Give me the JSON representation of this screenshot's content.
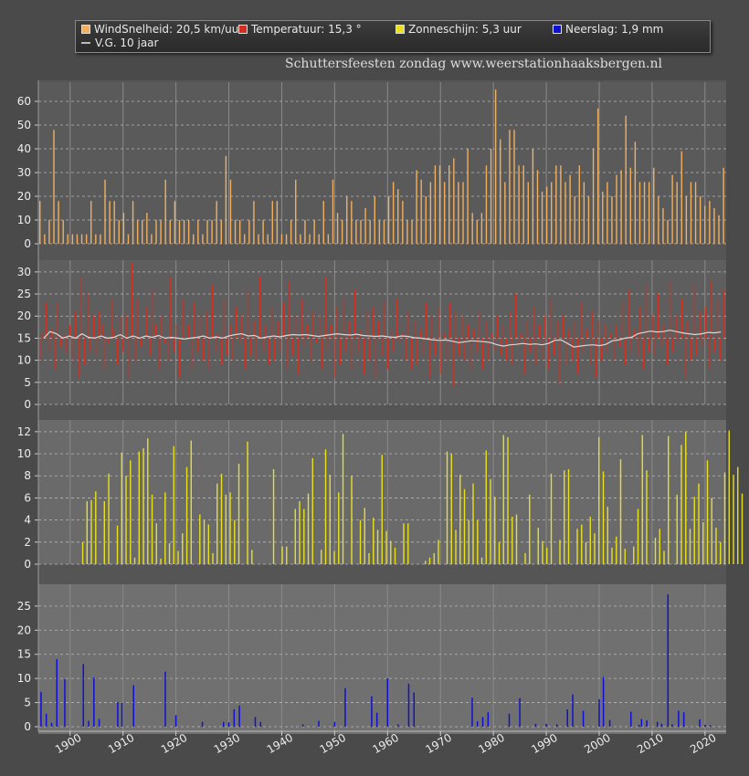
{
  "legend": {
    "items": [
      {
        "label": "WindSnelheid: 20,5 km/uur",
        "color": "#f0b060"
      },
      {
        "label": "Temperatuur: 15,3 °",
        "color": "#d03020"
      },
      {
        "label": "Zonneschijn: 5,3 uur",
        "color": "#e8e020"
      },
      {
        "label": "Neerslag: 1,9 mm",
        "color": "#1010d0"
      },
      {
        "label": "V.G. 10 jaar",
        "color": "#bbbbbb"
      }
    ]
  },
  "title": "Schuttersfeesten zondag  www.weerstationhaaksbergen.nl",
  "chart_data": {
    "type": "bar",
    "x_range": [
      1894,
      2024
    ],
    "x_ticks": [
      "1900",
      "1910",
      "1920",
      "1930",
      "1940",
      "1950",
      "1960",
      "1970",
      "1980",
      "1990",
      "2000",
      "2010",
      "2020"
    ],
    "panels": [
      {
        "name": "WindSnelheid",
        "color": "#f0b060",
        "ylim": [
          0,
          65
        ],
        "y_ticks": [
          "0",
          "10",
          "20",
          "30",
          "40",
          "50",
          "60"
        ],
        "values": [
          18,
          4,
          10,
          48,
          18,
          10,
          4,
          4,
          4,
          4,
          4,
          18,
          4,
          4,
          27,
          18,
          18,
          10,
          13,
          4,
          18,
          10,
          10,
          13,
          4,
          10,
          10,
          27,
          10,
          18,
          10,
          10,
          10,
          4,
          10,
          4,
          10,
          10,
          18,
          10,
          37,
          27,
          10,
          10,
          4,
          10,
          18,
          4,
          10,
          4,
          18,
          18,
          4,
          4,
          10,
          27,
          4,
          10,
          4,
          10,
          4,
          18,
          4,
          27,
          13,
          10,
          20,
          18,
          10,
          10,
          15,
          10,
          20,
          10,
          10,
          20,
          26,
          23,
          18,
          10,
          10,
          31,
          27,
          20,
          26,
          33,
          33,
          26,
          33,
          36,
          26,
          26,
          40,
          13,
          10,
          13,
          33,
          40,
          65,
          44,
          26,
          48,
          48,
          33,
          33,
          26,
          40,
          31,
          22,
          24,
          26,
          33,
          33,
          26,
          29,
          20,
          33,
          26,
          20,
          40,
          57,
          22,
          26,
          20,
          29,
          31,
          54,
          32,
          43,
          26,
          26,
          26,
          32,
          20,
          15,
          10,
          29,
          26,
          39,
          20,
          26,
          26,
          20,
          16,
          18,
          15,
          12,
          32
        ]
      },
      {
        "name": "Temperatuur",
        "color": "#d03020",
        "ylim": [
          0,
          31
        ],
        "y_ticks": [
          "0",
          "5",
          "10",
          "15",
          "20",
          "25",
          "30"
        ],
        "values": [
          10,
          16,
          23,
          12,
          17,
          8,
          23,
          13,
          16,
          12,
          18,
          10,
          21,
          6,
          29,
          9,
          25,
          12,
          20,
          11,
          21,
          18,
          8,
          14,
          24,
          17,
          9,
          20,
          12,
          20,
          6,
          32,
          10,
          24,
          13,
          15,
          22,
          11,
          26,
          18,
          8,
          20,
          14,
          10,
          29,
          12,
          18,
          6,
          24,
          15,
          18,
          8,
          23,
          12,
          20,
          10,
          21,
          8,
          27,
          12,
          16,
          9,
          24,
          11,
          18,
          10,
          22,
          14,
          20,
          8,
          26,
          11,
          19,
          10,
          29,
          12,
          18,
          9,
          22,
          10,
          19,
          12,
          23,
          8,
          28,
          11,
          20,
          7,
          24,
          13,
          18,
          10,
          21,
          14,
          20,
          8,
          29,
          12,
          18,
          6,
          22,
          9,
          24,
          12,
          19,
          8,
          26,
          12,
          17,
          7,
          21,
          10,
          22,
          6,
          19,
          11,
          23,
          8,
          17,
          12,
          24,
          14,
          16,
          10,
          21,
          8,
          19,
          9,
          17,
          11,
          23,
          6,
          20,
          11,
          22,
          7,
          16,
          10,
          23,
          4,
          21,
          11,
          20,
          10,
          18,
          8,
          17,
          12,
          21,
          8,
          19,
          10,
          16,
          12,
          20,
          11,
          18,
          10,
          21,
          9,
          25,
          13,
          16,
          7,
          19,
          12,
          22,
          9,
          18,
          10,
          20,
          8,
          24,
          11,
          19,
          5,
          20,
          9,
          17,
          10,
          19,
          7,
          23,
          12,
          17,
          9,
          21,
          6,
          19,
          10,
          18,
          12,
          16,
          10,
          18,
          13,
          23,
          9,
          26,
          12,
          17,
          11,
          22,
          8,
          27,
          12,
          20,
          11,
          25,
          13,
          18,
          9,
          28,
          12,
          20,
          14,
          24,
          6,
          19,
          10,
          27,
          11,
          21,
          13,
          22,
          8,
          28,
          12,
          24,
          10,
          26
        ],
        "trend": [
          15,
          16.5,
          16,
          15,
          15.5,
          15,
          16,
          15.2,
          15,
          15.5,
          15,
          15.2,
          15.8,
          15,
          15.5,
          15,
          15.5,
          15.2,
          15.6,
          15,
          15.2,
          15,
          14.8,
          15,
          15.2,
          15.5,
          15,
          15.3,
          15,
          15.5,
          15.8,
          16,
          15.5,
          15.6,
          15,
          15.3,
          15.5,
          15.3,
          15.6,
          15.8,
          15.7,
          15.8,
          15.6,
          15.4,
          15.6,
          15.8,
          16,
          15.8,
          15.7,
          15.9,
          15.6,
          15.5,
          15.4,
          15.5,
          15.3,
          15.2,
          15.5,
          15.4,
          15.1,
          15,
          14.8,
          14.6,
          14.5,
          14.6,
          14.3,
          14,
          14.2,
          14.4,
          14.3,
          14.2,
          14,
          13.5,
          13.2,
          13.5,
          13.6,
          13.8,
          13.6,
          13.7,
          13.5,
          13.8,
          14.5,
          14.6,
          13.8,
          13,
          13.2,
          13.4,
          13.5,
          13.3,
          13.6,
          14.4,
          14.6,
          15,
          15.2,
          16,
          16.3,
          16.6,
          16.4,
          16.5,
          16.8,
          16.5,
          16.2,
          16,
          15.8,
          16,
          16.3,
          16.2,
          16.4
        ]
      },
      {
        "name": "Zonneschijn",
        "color": "#e8e020",
        "ylim": [
          0,
          12.4
        ],
        "y_ticks": [
          "0",
          "2",
          "4",
          "6",
          "8",
          "10",
          "12"
        ],
        "values": [
          0,
          0,
          0,
          0,
          0,
          0,
          0,
          0,
          0,
          2,
          5.7,
          5.8,
          6.6,
          0,
          5.7,
          8.2,
          0,
          3.5,
          10.1,
          8,
          9.4,
          0.6,
          10.2,
          10.5,
          11.4,
          6.3,
          3.7,
          0.5,
          6.5,
          1.9,
          10.7,
          1.2,
          2.8,
          8.8,
          11.2,
          0,
          4.5,
          4,
          3.6,
          1,
          7.3,
          8.2,
          6.3,
          6.5,
          4,
          9.1,
          0,
          11.1,
          1.3,
          0,
          0,
          0,
          0,
          8.6,
          0,
          1.6,
          1.6,
          0,
          5,
          5.7,
          5,
          6.4,
          9.6,
          0,
          1.3,
          10.4,
          8.1,
          1.2,
          6.5,
          11.8,
          0,
          8,
          0,
          4,
          5.1,
          1,
          4.2,
          3.1,
          9.9,
          3,
          2.1,
          1.5,
          0,
          3.7,
          3.7,
          0,
          0,
          0,
          0.3,
          0.6,
          1,
          2.2,
          0,
          10.2,
          10,
          3.1,
          8.1,
          6.8,
          4,
          7.3,
          4,
          0.6,
          10.3,
          7.7,
          6.1,
          2,
          11.7,
          11.5,
          4.3,
          4.5,
          0,
          1,
          6.3,
          0,
          3.3,
          2.1,
          1.5,
          8.2,
          0,
          2.2,
          8.5,
          8.6,
          0,
          3.2,
          3.6,
          2,
          4.3,
          2.8,
          11.5,
          8.4,
          5.2,
          1.5,
          2.5,
          9.5,
          1.4,
          0,
          1.6,
          5,
          11.7,
          8.5,
          0,
          2.4,
          3.2,
          1.2,
          11.6,
          0,
          6.3,
          10.8,
          12,
          3.2,
          6.1,
          7.3,
          3.8,
          9.4,
          6,
          3.3,
          2,
          8.3,
          12.1,
          8.1,
          8.8,
          6.4
        ],
        "x_start": 1895.0,
        "x_step": 0.82
      },
      {
        "name": "Neerslag",
        "color": "#1010d0",
        "ylim": [
          0,
          28
        ],
        "y_ticks": [
          "0",
          "5",
          "10",
          "15",
          "20",
          "25"
        ],
        "points": [
          [
            1894.5,
            7.2
          ],
          [
            1895.5,
            2.7
          ],
          [
            1896.5,
            0.8
          ],
          [
            1897.5,
            14
          ],
          [
            1899,
            9.8
          ],
          [
            1902.5,
            13
          ],
          [
            1903.5,
            1.2
          ],
          [
            1904.5,
            10.2
          ],
          [
            1905.5,
            1.6
          ],
          [
            1909,
            5.1
          ],
          [
            1909.8,
            5
          ],
          [
            1912,
            8.6
          ],
          [
            1918,
            11.4
          ],
          [
            1920,
            2.4
          ],
          [
            1925,
            1
          ],
          [
            1929,
            1
          ],
          [
            1930,
            0.9
          ],
          [
            1931,
            3.6
          ],
          [
            1932,
            4.4
          ],
          [
            1935,
            2
          ],
          [
            1936,
            1
          ],
          [
            1944,
            0.5
          ],
          [
            1947,
            1.2
          ],
          [
            1950,
            1
          ],
          [
            1952,
            8
          ],
          [
            1957,
            6.3
          ],
          [
            1958,
            2.9
          ],
          [
            1960,
            10
          ],
          [
            1962,
            0.5
          ],
          [
            1964,
            8.9
          ],
          [
            1965,
            7.1
          ],
          [
            1976,
            6
          ],
          [
            1977,
            1.1
          ],
          [
            1978,
            2
          ],
          [
            1979,
            3
          ],
          [
            1983,
            2.7
          ],
          [
            1985,
            5.9
          ],
          [
            1988,
            0.6
          ],
          [
            1990,
            0.6
          ],
          [
            1992,
            0.5
          ],
          [
            1994,
            3.6
          ],
          [
            1995,
            6.7
          ],
          [
            1997,
            3.3
          ],
          [
            2000,
            5.7
          ],
          [
            2000.8,
            10.3
          ],
          [
            2002,
            1.4
          ],
          [
            2006,
            3.1
          ],
          [
            2007.5,
            0.4
          ],
          [
            2008,
            1.6
          ],
          [
            2009,
            1.3
          ],
          [
            2011,
            1
          ],
          [
            2011.8,
            0.6
          ],
          [
            2013,
            27.4
          ],
          [
            2013.8,
            0.5
          ],
          [
            2015,
            3.3
          ],
          [
            2016,
            3
          ],
          [
            2019,
            1.5
          ],
          [
            2020,
            0.4
          ],
          [
            2021,
            0.3
          ]
        ]
      }
    ]
  }
}
